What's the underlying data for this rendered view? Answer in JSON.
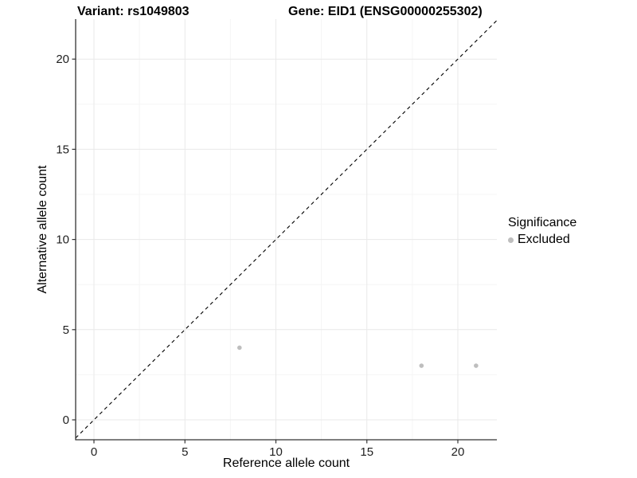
{
  "figure": {
    "title_left": "Variant: rs1049803",
    "title_right": "Gene: EID1 (ENSG00000255302)"
  },
  "chart_data": {
    "type": "scatter",
    "title": "Variant: rs1049803   Gene: EID1 (ENSG00000255302)",
    "xlabel": "Reference allele count",
    "ylabel": "Alternative allele count",
    "xlim": [
      -1,
      22.2
    ],
    "ylim": [
      -1.1,
      22.2
    ],
    "xticks": [
      0,
      5,
      10,
      15,
      20
    ],
    "yticks": [
      0,
      5,
      10,
      15,
      20
    ],
    "minor_xticks": [
      2.5,
      7.5,
      12.5,
      17.5
    ],
    "minor_yticks": [
      2.5,
      7.5,
      12.5,
      17.5
    ],
    "grid": "major+minor",
    "series": [
      {
        "name": "Excluded",
        "color": "#bebebe",
        "points": [
          [
            8,
            4
          ],
          [
            18,
            3
          ],
          [
            21,
            3
          ]
        ]
      }
    ],
    "reference_line": {
      "slope": 1,
      "intercept": 0,
      "style": "dashed",
      "color": "#000000"
    },
    "legend": {
      "title": "Significance",
      "position": "right",
      "entries": [
        {
          "label": "Excluded",
          "color": "#bebebe"
        }
      ]
    }
  },
  "colors": {
    "background": "#ffffff",
    "major_grid": "#e9e9e9",
    "minor_grid": "#f5f5f5",
    "axis_line": "#333333",
    "tick_text": "#1f1f1f",
    "point": "#bebebe"
  }
}
